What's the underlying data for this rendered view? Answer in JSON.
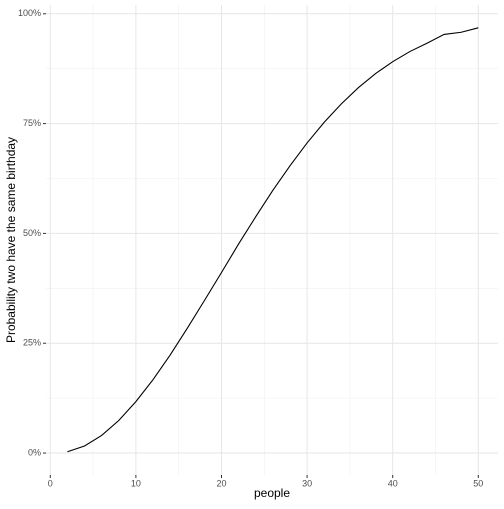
{
  "chart_data": {
    "type": "line",
    "x_label": "people",
    "y_label": "Probability two have the same birthday",
    "x": [
      2,
      4,
      6,
      8,
      10,
      12,
      14,
      16,
      18,
      20,
      22,
      24,
      26,
      28,
      30,
      32,
      34,
      36,
      38,
      40,
      42,
      44,
      46,
      48,
      50
    ],
    "series": [
      {
        "color": "#000000",
        "values": [
          0.3,
          1.6,
          4.0,
          7.4,
          11.7,
          16.7,
          22.3,
          28.4,
          34.7,
          41.1,
          47.6,
          53.8,
          59.8,
          65.4,
          70.6,
          75.3,
          79.5,
          83.2,
          86.4,
          89.1,
          91.4,
          93.3,
          95.3,
          95.8,
          96.8
        ]
      }
    ],
    "xlim": [
      -0.5,
      52.3
    ],
    "ylim": [
      -5,
      102
    ],
    "xticks": [
      0,
      10,
      20,
      30,
      40,
      50
    ],
    "yticks": [
      {
        "value": 0,
        "label": "0%"
      },
      {
        "value": 25,
        "label": "25%"
      },
      {
        "value": 50,
        "label": "50%"
      },
      {
        "value": 75,
        "label": "75%"
      },
      {
        "value": 100,
        "label": "100%"
      }
    ],
    "grid": true
  }
}
